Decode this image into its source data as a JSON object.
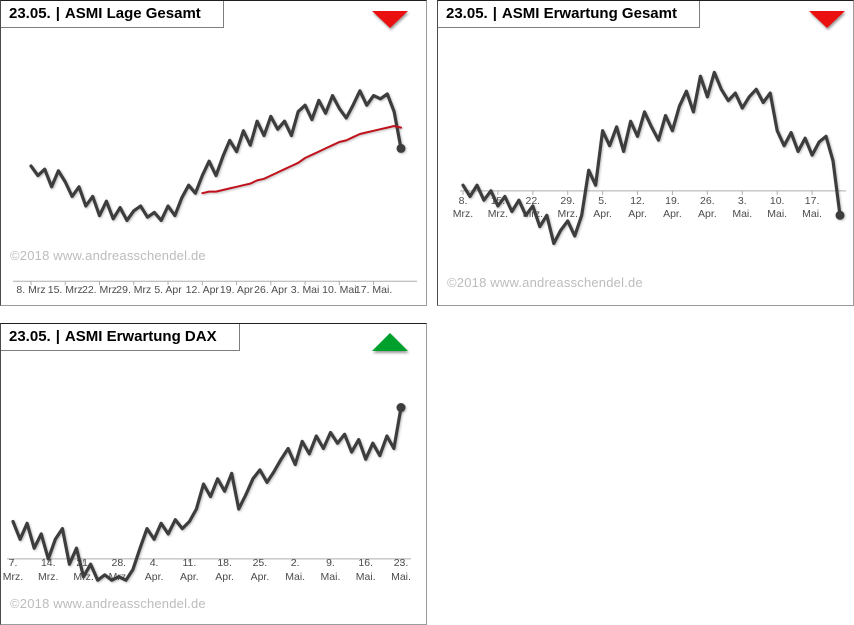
{
  "page": {
    "background": "#ffffff"
  },
  "panels": [
    {
      "title": {
        "date": "23.05.",
        "separator": "|",
        "name": "ASMI Lage Gesamt"
      },
      "trend": {
        "direction": "down",
        "color": "#ea1010"
      },
      "watermark": "©2018 www.andreasschendel.de",
      "chart_data": {
        "type": "line",
        "title": "ASMI Lage Gesamt",
        "xlabel": "",
        "ylabel": "",
        "ylim": [
          0,
          100
        ],
        "axis_value": -22,
        "tick_step": 5,
        "tick_labels": [
          [
            "8. Mrz"
          ],
          [
            "15. Mrz"
          ],
          [
            "22. Mrz"
          ],
          [
            "29. Mrz"
          ],
          [
            "5. Apr"
          ],
          [
            "12. Apr"
          ],
          [
            "19. Apr"
          ],
          [
            "26. Apr"
          ],
          [
            "3. Mai"
          ],
          [
            "10. Mai"
          ],
          [
            "17. Mai."
          ]
        ],
        "series": [
          {
            "name": "index_line",
            "color": "#3d3d3d",
            "width": 3.2,
            "end_dot": true,
            "values": [
              50,
              44,
              48,
              37,
              47,
              40,
              31,
              37,
              25,
              31,
              19,
              28,
              17,
              24,
              16,
              22,
              25,
              18,
              21,
              16,
              25,
              19,
              30,
              38,
              33,
              44,
              53,
              44,
              56,
              66,
              59,
              72,
              63,
              78,
              69,
              81,
              73,
              78,
              69,
              84,
              88,
              79,
              91,
              83,
              94,
              86,
              80,
              88,
              97,
              88,
              94,
              92,
              95,
              84,
              61
            ]
          },
          {
            "name": "trend_line",
            "color": "#c0121c",
            "width": 2,
            "end_dot": false,
            "values": [
              null,
              null,
              null,
              null,
              null,
              null,
              null,
              null,
              null,
              null,
              null,
              null,
              null,
              null,
              null,
              null,
              null,
              null,
              null,
              null,
              null,
              null,
              null,
              null,
              null,
              33,
              34,
              34,
              35,
              36,
              37,
              38,
              39,
              41,
              42,
              44,
              46,
              48,
              50,
              52,
              55,
              57,
              59,
              61,
              63,
              65,
              66,
              68,
              70,
              71,
              72,
              73,
              74,
              75,
              74
            ]
          }
        ]
      }
    },
    {
      "title": {
        "date": "23.05.",
        "separator": "|",
        "name": "ASMI Erwartung Gesamt"
      },
      "trend": {
        "direction": "down",
        "color": "#ea1010"
      },
      "watermark": "©2018 www.andreasschendel.de",
      "chart_data": {
        "type": "line",
        "title": "ASMI Erwartung Gesamt",
        "xlabel": "",
        "ylabel": "",
        "ylim": [
          0,
          100
        ],
        "axis_value": 32,
        "tick_step": 5,
        "tick_labels": [
          [
            "8.",
            "Mrz."
          ],
          [
            "15.",
            "Mrz."
          ],
          [
            "22.",
            "Mrz."
          ],
          [
            "29.",
            "Mrz."
          ],
          [
            "5.",
            "Apr."
          ],
          [
            "12.",
            "Apr."
          ],
          [
            "19.",
            "Apr."
          ],
          [
            "26.",
            "Apr."
          ],
          [
            "3.",
            "Mai."
          ],
          [
            "10.",
            "Mai."
          ],
          [
            "17.",
            "Mai."
          ]
        ],
        "series": [
          {
            "name": "index_line",
            "color": "#3d3d3d",
            "width": 3.2,
            "end_dot": true,
            "values": [
              35,
              29,
              35,
              27,
              32,
              24,
              29,
              21,
              27,
              19,
              24,
              13,
              19,
              4,
              11,
              16,
              8,
              19,
              43,
              35,
              64,
              56,
              66,
              53,
              69,
              61,
              74,
              66,
              59,
              72,
              64,
              77,
              85,
              74,
              93,
              82,
              95,
              86,
              80,
              84,
              76,
              82,
              86,
              79,
              84,
              64,
              56,
              63,
              53,
              60,
              51,
              58,
              61,
              48,
              19
            ]
          }
        ]
      }
    },
    {
      "title": {
        "date": "23.05.",
        "separator": "|",
        "name": "ASMI Erwartung DAX"
      },
      "trend": {
        "direction": "up",
        "color": "#00a02d"
      },
      "watermark": "©2018 www.andreasschendel.de",
      "chart_data": {
        "type": "line",
        "title": "ASMI Erwartung DAX",
        "xlabel": "",
        "ylabel": "",
        "ylim": [
          0,
          100
        ],
        "axis_value": 13,
        "tick_step": 5,
        "tick_labels": [
          [
            "7.",
            "Mrz."
          ],
          [
            "14.",
            "Mrz."
          ],
          [
            "21.",
            "Mrz."
          ],
          [
            "28.",
            "Mrz."
          ],
          [
            "4.",
            "Apr."
          ],
          [
            "11.",
            "Apr."
          ],
          [
            "18.",
            "Apr."
          ],
          [
            "25.",
            "Apr."
          ],
          [
            "2.",
            "Mai."
          ],
          [
            "9.",
            "Mai."
          ],
          [
            "16.",
            "Mai."
          ],
          [
            "23.",
            "Mai."
          ]
        ],
        "series": [
          {
            "name": "index_line",
            "color": "#3d3d3d",
            "width": 3.2,
            "end_dot": true,
            "values": [
              34,
              24,
              33,
              19,
              27,
              13,
              24,
              30,
              10,
              19,
              3,
              10,
              1,
              4,
              1,
              3,
              1,
              7,
              19,
              30,
              24,
              33,
              27,
              35,
              30,
              34,
              41,
              55,
              48,
              58,
              51,
              61,
              41,
              49,
              58,
              63,
              56,
              62,
              69,
              75,
              66,
              79,
              72,
              82,
              75,
              84,
              78,
              83,
              73,
              80,
              69,
              78,
              71,
              82,
              75,
              98
            ]
          }
        ]
      }
    }
  ]
}
